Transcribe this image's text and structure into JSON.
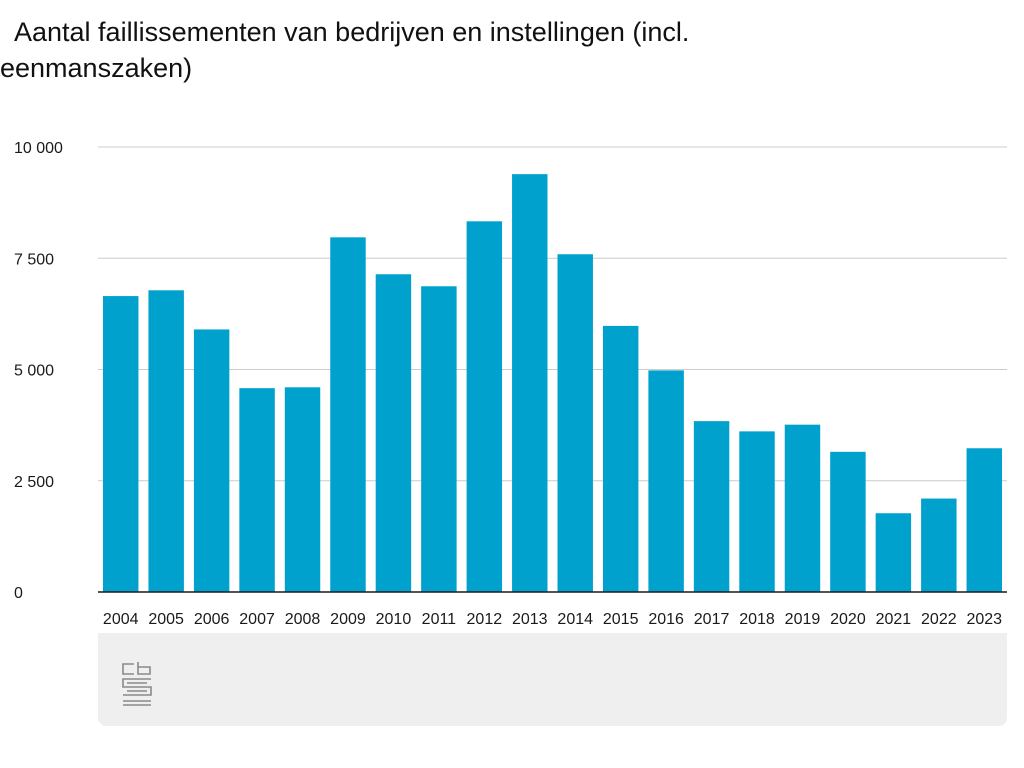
{
  "title": "Aantal faillissementen van bedrijven en instellingen (incl. eenmanszaken)",
  "colors": {
    "bar": "#00A1CD",
    "grid": "#cccccc",
    "axis": "#1a1a1a",
    "footer": "#efefef",
    "logo": "#8a8a8a"
  },
  "logo_icon": "cbs-logo-icon",
  "chart_data": {
    "type": "bar",
    "title": "Aantal faillissementen van bedrijven en instellingen (incl. eenmanszaken)",
    "xlabel": "",
    "ylabel": "",
    "categories": [
      "2004",
      "2005",
      "2006",
      "2007",
      "2008",
      "2009",
      "2010",
      "2011",
      "2012",
      "2013",
      "2014",
      "2015",
      "2016",
      "2017",
      "2018",
      "2019",
      "2020",
      "2021",
      "2022",
      "2023"
    ],
    "values": [
      6650,
      6780,
      5900,
      4580,
      4600,
      7970,
      7140,
      6870,
      8330,
      9390,
      7590,
      5980,
      4980,
      3840,
      3610,
      3760,
      3150,
      1770,
      2100,
      3230
    ],
    "ylim": [
      0,
      10000
    ],
    "yticks": [
      0,
      2500,
      5000,
      7500,
      10000
    ],
    "ytick_labels": [
      "0",
      "2 500",
      "5 000",
      "7 500",
      "10 000"
    ],
    "grid": true,
    "legend": "none"
  }
}
